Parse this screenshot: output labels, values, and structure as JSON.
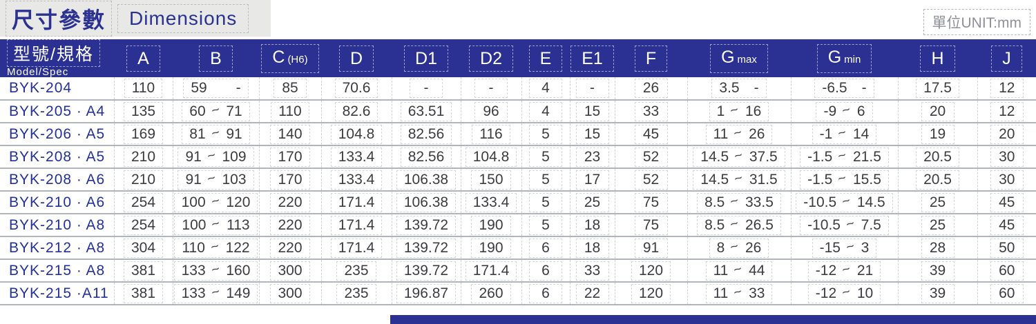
{
  "title": {
    "cjk": "尺寸參數",
    "en": "Dimensions"
  },
  "unit_label": "單位UNIT:mm",
  "colors": {
    "navy": "#2b3192",
    "band_bg": "#e8e8e6",
    "model_text": "#21309b",
    "body_text": "#3c3c40",
    "grid_line": "#b0b5bb",
    "dash_line": "#cfd2d6",
    "unit_text": "#8d9196"
  },
  "table": {
    "model_header": {
      "cjk": "型號/規格",
      "en": "Model/Spec"
    },
    "columns": [
      {
        "id": "a",
        "main": "A",
        "sub": ""
      },
      {
        "id": "b",
        "main": "B",
        "sub": ""
      },
      {
        "id": "c_h6",
        "main": "C",
        "sub": "(H6)"
      },
      {
        "id": "d",
        "main": "D",
        "sub": ""
      },
      {
        "id": "d1",
        "main": "D1",
        "sub": ""
      },
      {
        "id": "d2",
        "main": "D2",
        "sub": ""
      },
      {
        "id": "e",
        "main": "E",
        "sub": ""
      },
      {
        "id": "e1",
        "main": "E1",
        "sub": ""
      },
      {
        "id": "f",
        "main": "F",
        "sub": ""
      },
      {
        "id": "g_max",
        "main": "G",
        "sub": "max"
      },
      {
        "id": "g_min",
        "main": "G",
        "sub": "min"
      },
      {
        "id": "h",
        "main": "H",
        "sub": ""
      },
      {
        "id": "j",
        "main": "J",
        "sub": ""
      }
    ],
    "rows": [
      {
        "model": "BYK-204",
        "values": [
          "110",
          "59  -",
          "85",
          "70.6",
          "-",
          "-",
          "4",
          "-",
          "26",
          "3.5 -",
          "-6.5 -",
          "17.5",
          "12"
        ]
      },
      {
        "model": "BYK-205 · A4",
        "values": [
          "135",
          "60~71",
          "110",
          "82.6",
          "63.51",
          "96",
          "4",
          "15",
          "33",
          "1~16",
          "-9~6",
          "20",
          "12"
        ]
      },
      {
        "model": "BYK-206 · A5",
        "values": [
          "169",
          "81~91",
          "140",
          "104.8",
          "82.56",
          "116",
          "5",
          "15",
          "45",
          "11~26",
          "-1~14",
          "19",
          "20"
        ]
      },
      {
        "model": "BYK-208 · A5",
        "values": [
          "210",
          "91~109",
          "170",
          "133.4",
          "82.56",
          "104.8",
          "5",
          "23",
          "52",
          "14.5~37.5",
          "-1.5~21.5",
          "20.5",
          "30"
        ]
      },
      {
        "model": "BYK-208 · A6",
        "values": [
          "210",
          "91~103",
          "170",
          "133.4",
          "106.38",
          "150",
          "5",
          "17",
          "52",
          "14.5~31.5",
          "-1.5~15.5",
          "20.5",
          "30"
        ]
      },
      {
        "model": "BYK-210 · A6",
        "values": [
          "254",
          "100~120",
          "220",
          "171.4",
          "106.38",
          "133.4",
          "5",
          "25",
          "75",
          "8.5~33.5",
          "-10.5~14.5",
          "25",
          "45"
        ]
      },
      {
        "model": "BYK-210 · A8",
        "values": [
          "254",
          "100~113",
          "220",
          "171.4",
          "139.72",
          "190",
          "5",
          "18",
          "75",
          "8.5~26.5",
          "-10.5~7.5",
          "25",
          "45"
        ]
      },
      {
        "model": "BYK-212 · A8",
        "values": [
          "304",
          "110~122",
          "220",
          "171.4",
          "139.72",
          "190",
          "6",
          "18",
          "91",
          "8~26",
          "-15~3",
          "28",
          "50"
        ]
      },
      {
        "model": "BYK-215 · A8",
        "values": [
          "381",
          "133~160",
          "300",
          "235",
          "139.72",
          "171.4",
          "6",
          "33",
          "120",
          "11~44",
          "-12~21",
          "39",
          "60"
        ]
      },
      {
        "model": "BYK-215 ·A11",
        "values": [
          "381",
          "133~149",
          "300",
          "235",
          "196.87",
          "260",
          "6",
          "22",
          "120",
          "11~33",
          "-12~10",
          "39",
          "60"
        ]
      }
    ]
  }
}
